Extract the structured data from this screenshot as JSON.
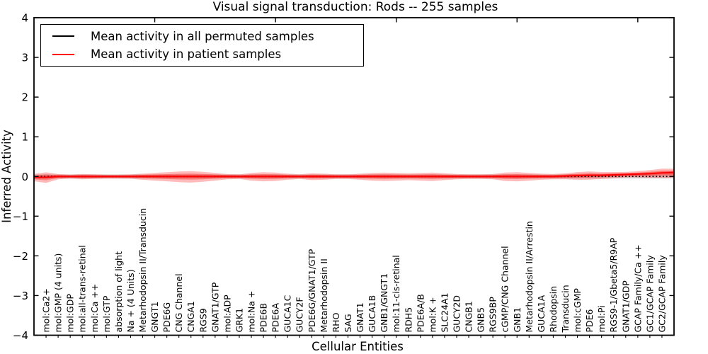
{
  "legend": {
    "entries": [
      {
        "label": "Mean activity in all permuted samples",
        "color": "#000000"
      },
      {
        "label": "Mean activity in patient samples",
        "color": "#ff0000"
      }
    ]
  },
  "chart_data": {
    "type": "line",
    "title": "Visual signal transduction: Rods -- 255 samples",
    "xlabel": "Cellular Entities",
    "ylabel": "Inferred Activity",
    "ylim": [
      -4,
      4
    ],
    "xlim": [
      0,
      53
    ],
    "yticks": [
      4,
      3,
      2,
      1,
      0,
      -1,
      -2,
      -3,
      -4
    ],
    "top_tick_positions": [
      10,
      20,
      30,
      40,
      50
    ],
    "grid": false,
    "legend_position": "upper left",
    "colors": {
      "permuted_band": "#dedede",
      "patient_fill": "#ff0000",
      "axis": "#000000"
    },
    "categories": [
      "mol:Ca2+",
      "mol:GMP (4 units)",
      "mol:GDP",
      "mol:all-trans-retinal",
      "mol:Ca ++",
      "mol:GTP",
      "absorption of light",
      "Na + (4 Units)",
      "Metarhodopsin II/Transducin",
      "GNGT1",
      "PDE6G",
      "CNG Channel",
      "CNGA1",
      "RGS9",
      "GNAT1/GTP",
      "mol:ADP",
      "GRK1",
      "mol:Na +",
      "PDE6B",
      "PDE6A",
      "GUCA1C",
      "GUCY2F",
      "PDE6G/GNAT1/GTP",
      "Metarhodopsin II",
      "RHO",
      "SAG",
      "GNAT1",
      "GUCA1B",
      "GNB1/GNGT1",
      "mol:11-cis-retinal",
      "RDH5",
      "PDE6A/B",
      "mol:K +",
      "SLC24A1",
      "GUCY2D",
      "CNGB1",
      "GNB5",
      "RGS9BP",
      "cGMP/CNG Channel",
      "GNB1",
      "Metarhodopsin II/Arrestin",
      "GUCA1A",
      "Rhodopsin",
      "Transducin",
      "mol:cGMP",
      "PDE6",
      "mol:Pi",
      "RGS9-1/Gbeta5/R9AP",
      "GNAT1/GDP",
      "GCAP Family/Ca ++",
      "GC1/GCAP Family",
      "GC2/GCAP Family"
    ],
    "series": [
      {
        "name": "Mean activity in all permuted samples",
        "color": "#000000",
        "line_style": "dotted",
        "constant_value": 0,
        "spread": 0.055
      },
      {
        "name": "Mean activity in patient samples",
        "color": "#ff0000",
        "line_style": "solid",
        "values": [
          -0.02,
          0,
          0,
          0,
          0,
          0,
          0,
          0,
          0,
          0,
          0,
          0,
          0,
          0,
          0,
          0,
          0,
          0,
          0,
          0,
          0,
          0,
          0,
          0,
          0,
          0,
          0,
          0,
          0,
          0,
          0,
          0,
          0,
          0,
          0,
          0,
          0,
          0,
          0,
          0,
          0,
          0,
          0,
          0.01,
          0.02,
          0.03,
          0.03,
          0.04,
          0.05,
          0.06,
          0.07,
          0.09
        ],
        "spread": [
          0.125,
          0.063,
          0.045,
          0.063,
          0.054,
          0.045,
          0.045,
          0.05,
          0.072,
          0.09,
          0.107,
          0.125,
          0.134,
          0.116,
          0.09,
          0.063,
          0.054,
          0.09,
          0.107,
          0.098,
          0.072,
          0.054,
          0.08,
          0.072,
          0.054,
          0.054,
          0.072,
          0.09,
          0.098,
          0.09,
          0.08,
          0.09,
          0.098,
          0.08,
          0.063,
          0.054,
          0.054,
          0.063,
          0.098,
          0.107,
          0.09,
          0.072,
          0.063,
          0.072,
          0.09,
          0.098,
          0.08,
          0.072,
          0.063,
          0.072,
          0.09,
          0.107
        ]
      }
    ]
  }
}
